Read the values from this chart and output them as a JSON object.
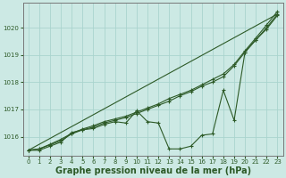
{
  "background_color": "#cce9e4",
  "plot_bg_color": "#cce9e4",
  "grid_color": "#aad4ce",
  "line_color": "#2d5a27",
  "xlabel": "Graphe pression niveau de la mer (hPa)",
  "xlabel_fontsize": 7,
  "xlim": [
    -0.5,
    23.5
  ],
  "ylim": [
    1015.3,
    1020.9
  ],
  "yticks": [
    1016,
    1017,
    1018,
    1019,
    1020
  ],
  "xticks": [
    0,
    1,
    2,
    3,
    4,
    5,
    6,
    7,
    8,
    9,
    10,
    11,
    12,
    13,
    14,
    15,
    16,
    17,
    18,
    19,
    20,
    21,
    22,
    23
  ],
  "series_smooth_x": [
    0,
    1,
    2,
    3,
    4,
    5,
    6,
    7,
    8,
    9,
    10,
    11,
    12,
    13,
    14,
    15,
    16,
    17,
    18,
    19,
    20,
    21,
    22,
    23
  ],
  "series_smooth_y": [
    1015.5,
    1015.55,
    1015.7,
    1015.85,
    1016.1,
    1016.25,
    1016.35,
    1016.5,
    1016.6,
    1016.7,
    1016.85,
    1017.0,
    1017.15,
    1017.3,
    1017.5,
    1017.65,
    1017.85,
    1018.0,
    1018.2,
    1018.6,
    1019.1,
    1019.55,
    1020.0,
    1020.5
  ],
  "series_smooth2_x": [
    0,
    1,
    2,
    3,
    4,
    5,
    6,
    7,
    8,
    9,
    10,
    11,
    12,
    13,
    14,
    15,
    16,
    17,
    18,
    19,
    20,
    21,
    22,
    23
  ],
  "series_smooth2_y": [
    1015.5,
    1015.55,
    1015.72,
    1015.9,
    1016.12,
    1016.28,
    1016.4,
    1016.55,
    1016.65,
    1016.75,
    1016.9,
    1017.05,
    1017.2,
    1017.4,
    1017.55,
    1017.7,
    1017.9,
    1018.1,
    1018.3,
    1018.65,
    1019.15,
    1019.62,
    1020.1,
    1020.6
  ],
  "series_valley_x": [
    0,
    1,
    2,
    3,
    4,
    5,
    6,
    7,
    8,
    9,
    10,
    11,
    12,
    13,
    14,
    15,
    16,
    17,
    18,
    19,
    20,
    21,
    22,
    23
  ],
  "series_valley_y": [
    1015.5,
    1015.5,
    1015.65,
    1015.8,
    1016.15,
    1016.25,
    1016.3,
    1016.45,
    1016.55,
    1016.5,
    1016.95,
    1016.55,
    1016.5,
    1015.55,
    1015.55,
    1015.65,
    1016.05,
    1016.1,
    1017.7,
    1016.6,
    1019.1,
    1019.55,
    1019.95,
    1020.45
  ],
  "straight_line_x": [
    0,
    23
  ],
  "straight_line_y": [
    1015.5,
    1020.5
  ]
}
